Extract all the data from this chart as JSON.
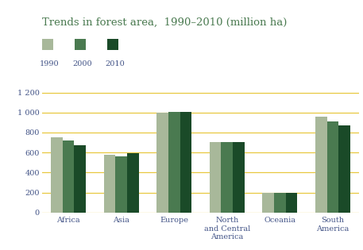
{
  "title": "Trends in forest area,  1990–2010 (million ha)",
  "categories": [
    "Africa",
    "Asia",
    "Europe",
    "North\nand Central\nAmerica",
    "Oceania",
    "South\nAmerica"
  ],
  "years": [
    "1990",
    "2000",
    "2010"
  ],
  "values": {
    "1990": [
      750,
      580,
      995,
      705,
      198,
      955
    ],
    "2000": [
      720,
      565,
      1003,
      703,
      198,
      910
    ],
    "2010": [
      674,
      593,
      1005,
      705,
      198,
      875
    ]
  },
  "colors": [
    "#a8b89a",
    "#4a7a50",
    "#1a4a28"
  ],
  "bar_width": 0.22,
  "ylim": [
    0,
    1300
  ],
  "yticks": [
    0,
    200,
    400,
    600,
    800,
    1000,
    1200
  ],
  "ytick_labels": [
    "0",
    "200",
    "400",
    "600",
    "800",
    "1 000",
    "1 200"
  ],
  "grid_color": "#e8c840",
  "background_color": "#ffffff",
  "title_color": "#4a7a50",
  "tick_color": "#445588",
  "xlabel_color": "#445588",
  "legend_labels": [
    "1990",
    "2000",
    "2010"
  ]
}
